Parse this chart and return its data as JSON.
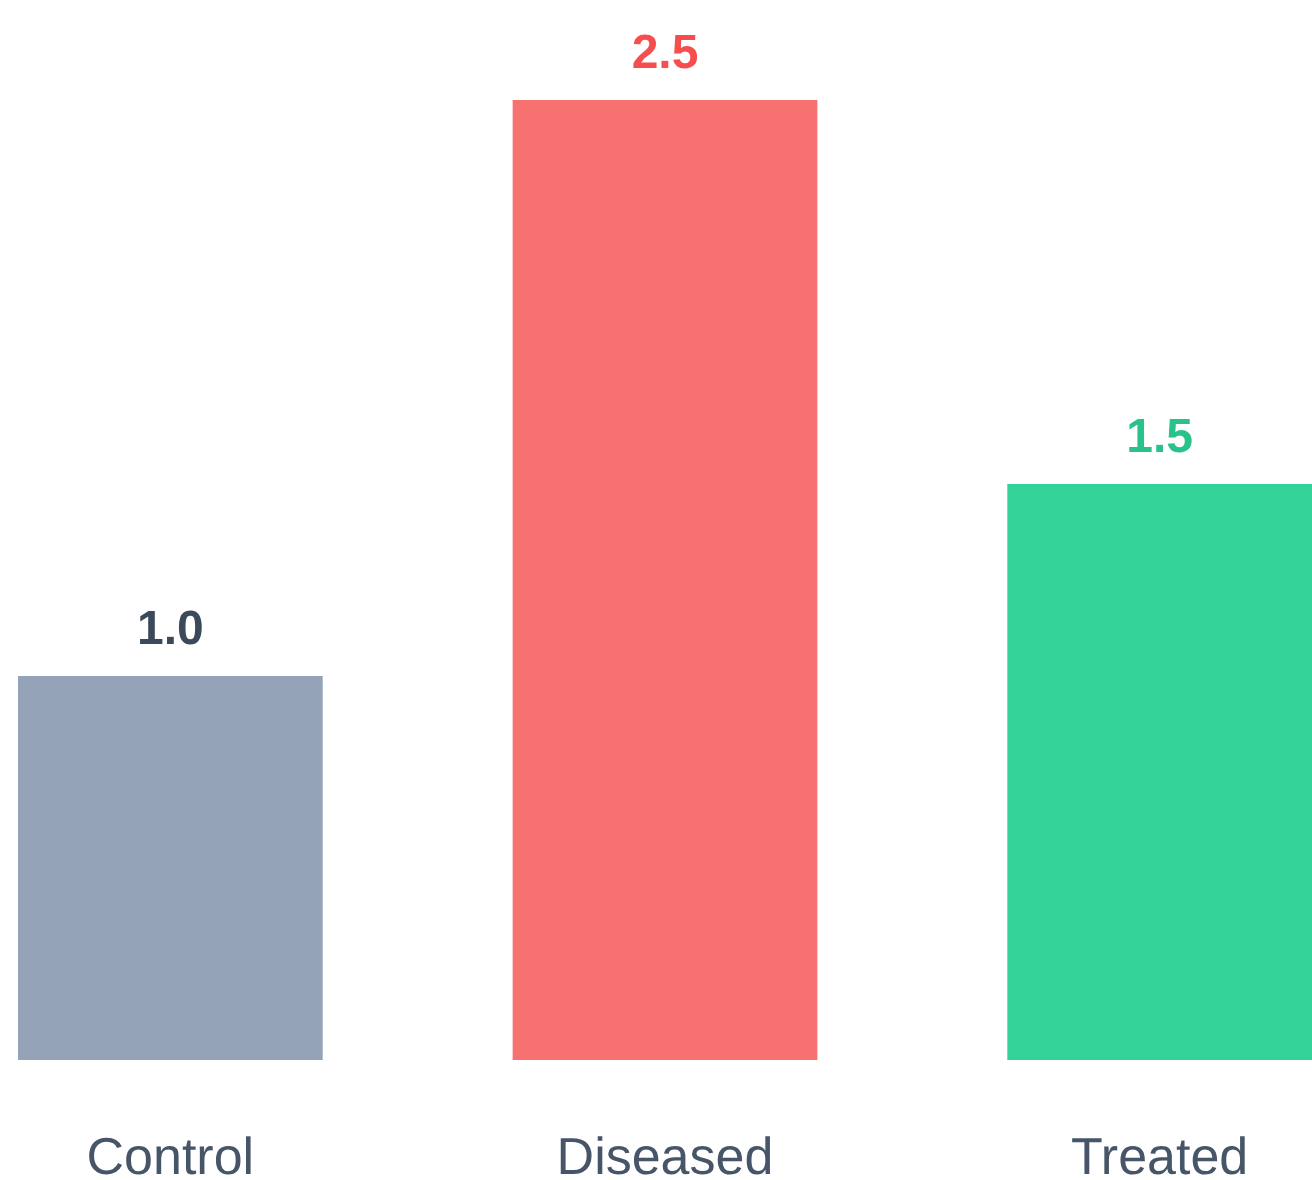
{
  "chart_data": {
    "type": "bar",
    "categories": [
      "Control",
      "Diseased",
      "Treated"
    ],
    "values": [
      1.0,
      2.5,
      1.5
    ],
    "colors": [
      "#94a3b8",
      "#f87171",
      "#34d399"
    ],
    "data_labels": true,
    "value_labels": [
      "1.0",
      "2.5",
      "1.5"
    ]
  }
}
